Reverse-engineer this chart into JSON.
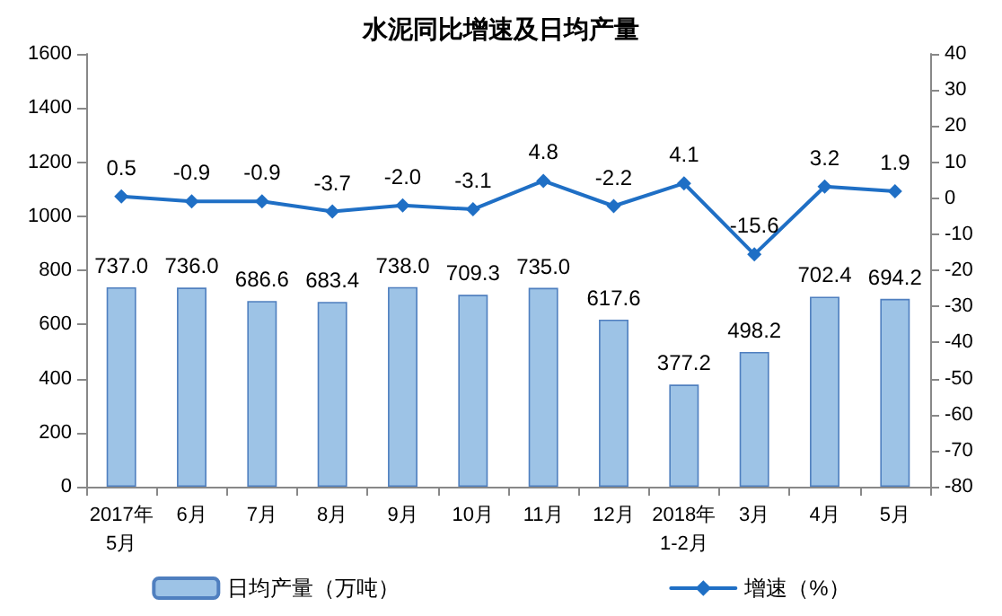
{
  "chart_data": {
    "type": "bar",
    "title": "水泥同比增速及日均产量",
    "categories": [
      "2017年\n5月",
      "6月",
      "7月",
      "8月",
      "9月",
      "10月",
      "11月",
      "12月",
      "2018年\n1-2月",
      "3月",
      "4月",
      "5月"
    ],
    "series": [
      {
        "name": "日均产量（万吨）",
        "color": "#9dc3e6",
        "values": [
          737.0,
          736.0,
          686.6,
          683.4,
          738.0,
          709.3,
          735.0,
          617.6,
          377.2,
          498.2,
          702.4,
          694.2
        ],
        "value_labels": [
          "737.0",
          "736.0",
          "686.6",
          "683.4",
          "738.0",
          "709.3",
          "735.0",
          "617.6",
          "377.2",
          "498.2",
          "702.4",
          "694.2"
        ]
      },
      {
        "name": "增速（%）",
        "type": "line",
        "axis": "y2",
        "color": "#1f6fc5",
        "values": [
          0.5,
          -0.9,
          -0.9,
          -3.7,
          -2.0,
          -3.1,
          4.8,
          -2.2,
          4.1,
          -15.6,
          3.2,
          1.9
        ],
        "value_labels": [
          "0.5",
          "-0.9",
          "-0.9",
          "-3.7",
          "-2.0",
          "-3.1",
          "4.8",
          "-2.2",
          "4.1",
          "-15.6",
          "3.2",
          "1.9"
        ]
      }
    ],
    "ylim": [
      0,
      1600
    ],
    "yticks": [
      0,
      200,
      400,
      600,
      800,
      1000,
      1200,
      1400,
      1600
    ],
    "y2lim": [
      -80,
      40
    ],
    "y2ticks": [
      -80,
      -70,
      -60,
      -50,
      -40,
      -30,
      -20,
      -10,
      0,
      10,
      20,
      30,
      40
    ],
    "grid": false,
    "legend": "bottom",
    "marker": "diamond",
    "line_style": "solid"
  }
}
